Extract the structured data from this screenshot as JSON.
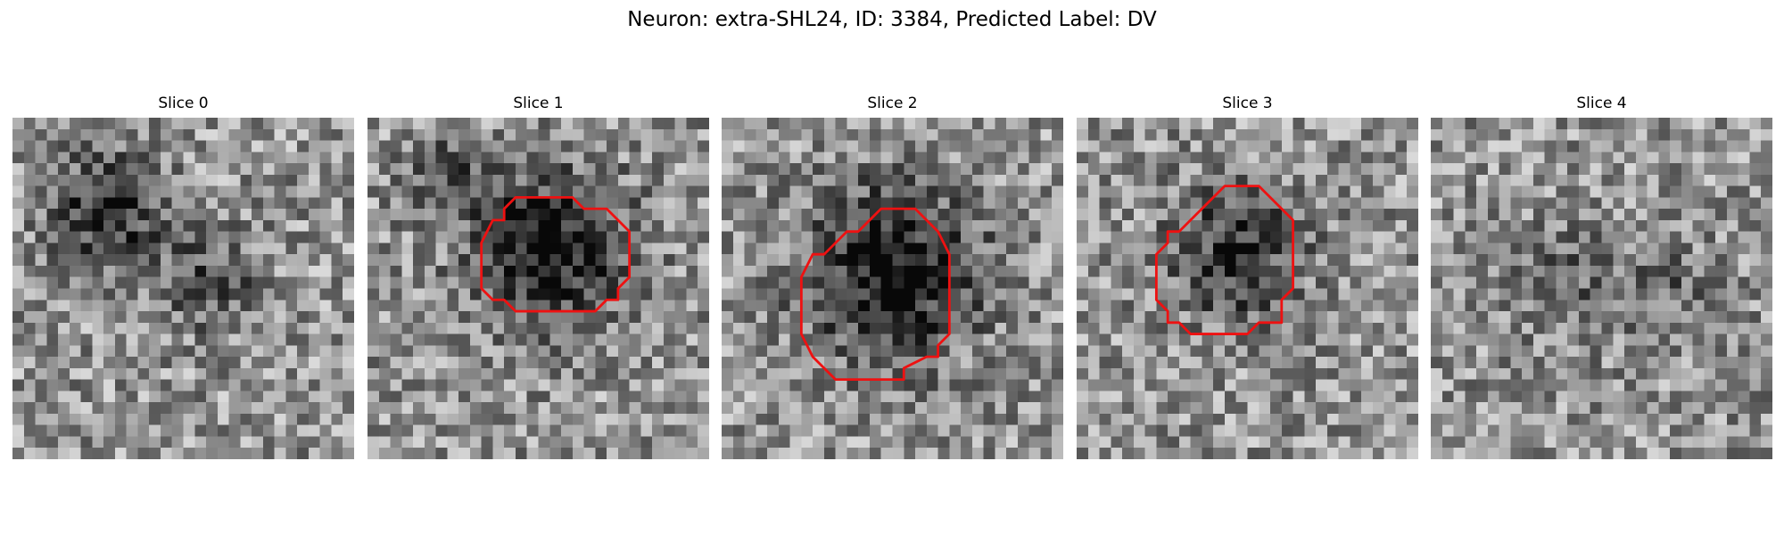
{
  "figure": {
    "title": "Neuron: extra-SHL24, ID: 3384, Predicted Label: DV",
    "contour_color": "#ee1111",
    "colormap": "grayscale",
    "panels": [
      {
        "title": "Slice 0",
        "has_contour": false
      },
      {
        "title": "Slice 1",
        "has_contour": true
      },
      {
        "title": "Slice 2",
        "has_contour": true
      },
      {
        "title": "Slice 3",
        "has_contour": true
      },
      {
        "title": "Slice 4",
        "has_contour": false
      }
    ]
  }
}
